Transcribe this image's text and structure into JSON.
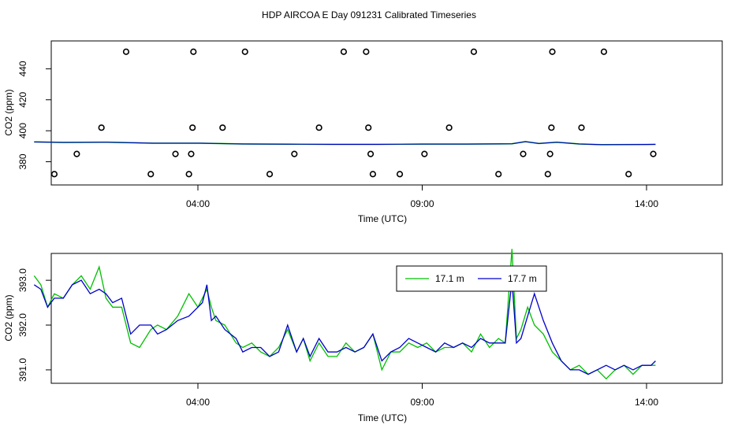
{
  "title": "HDP AIRCOA E  Day 091231  Calibrated Timeseries",
  "colors": {
    "series_17_1": "#00c000",
    "series_17_7": "#0000cc",
    "axis": "#000000"
  },
  "chart_data": [
    {
      "type": "scatter",
      "xlabel": "Time (UTC)",
      "ylabel": "CO2 (ppm)",
      "xticks": [
        "04:00",
        "09:00",
        "14:00"
      ],
      "xtick_hours": [
        4,
        9,
        14
      ],
      "yticks": [
        380,
        400,
        420,
        440
      ],
      "xlim": [
        0.3,
        14.7
      ],
      "ylim": [
        365,
        458
      ],
      "markers": [
        {
          "t": 0.8,
          "v": 372
        },
        {
          "t": 1.3,
          "v": 385
        },
        {
          "t": 1.85,
          "v": 402
        },
        {
          "t": 2.4,
          "v": 451
        },
        {
          "t": 2.95,
          "v": 372
        },
        {
          "t": 3.5,
          "v": 385
        },
        {
          "t": 3.8,
          "v": 372
        },
        {
          "t": 3.85,
          "v": 385
        },
        {
          "t": 3.88,
          "v": 402
        },
        {
          "t": 3.9,
          "v": 451
        },
        {
          "t": 4.55,
          "v": 402
        },
        {
          "t": 5.05,
          "v": 451
        },
        {
          "t": 5.6,
          "v": 372
        },
        {
          "t": 6.15,
          "v": 385
        },
        {
          "t": 6.7,
          "v": 402
        },
        {
          "t": 7.25,
          "v": 451
        },
        {
          "t": 7.75,
          "v": 451
        },
        {
          "t": 7.8,
          "v": 402
        },
        {
          "t": 7.85,
          "v": 385
        },
        {
          "t": 7.9,
          "v": 372
        },
        {
          "t": 8.5,
          "v": 372
        },
        {
          "t": 9.05,
          "v": 385
        },
        {
          "t": 9.6,
          "v": 402
        },
        {
          "t": 10.15,
          "v": 451
        },
        {
          "t": 10.7,
          "v": 372
        },
        {
          "t": 11.25,
          "v": 385
        },
        {
          "t": 11.8,
          "v": 372
        },
        {
          "t": 11.85,
          "v": 385
        },
        {
          "t": 11.88,
          "v": 402
        },
        {
          "t": 11.9,
          "v": 451
        },
        {
          "t": 12.55,
          "v": 402
        },
        {
          "t": 13.05,
          "v": 451
        },
        {
          "t": 13.6,
          "v": 372
        },
        {
          "t": 14.15,
          "v": 385
        }
      ],
      "series": [
        {
          "t": [
            0.35,
            1.0,
            2.0,
            3.0,
            4.0,
            5.0,
            6.0,
            7.0,
            8.0,
            9.0,
            10.0,
            11.0,
            11.3,
            11.6,
            12.0,
            12.5,
            13.0,
            14.0,
            14.2
          ],
          "v": [
            392.8,
            392.5,
            392.6,
            392.0,
            392.0,
            391.5,
            391.3,
            391.2,
            391.2,
            391.4,
            391.4,
            391.6,
            393.0,
            391.8,
            392.6,
            391.5,
            391.0,
            391.1,
            391.2
          ]
        }
      ]
    },
    {
      "type": "line",
      "xlabel": "Time (UTC)",
      "ylabel": "CO2 (ppm)",
      "xticks": [
        "04:00",
        "09:00",
        "14:00"
      ],
      "xtick_hours": [
        4,
        9,
        14
      ],
      "yticks": [
        "391.0",
        "392.0",
        "393.0"
      ],
      "ytick_values": [
        391.0,
        392.0,
        393.0
      ],
      "xlim": [
        0.3,
        14.7
      ],
      "ylim": [
        390.7,
        393.6
      ],
      "legend_position": "top-right",
      "series": [
        {
          "name": "17.1 m",
          "t": [
            0.35,
            0.5,
            0.65,
            0.8,
            1.0,
            1.2,
            1.4,
            1.6,
            1.8,
            1.95,
            2.1,
            2.3,
            2.5,
            2.7,
            2.95,
            3.1,
            3.3,
            3.55,
            3.8,
            4.0,
            4.1,
            4.2,
            4.3,
            4.4,
            4.6,
            4.85,
            5.0,
            5.2,
            5.4,
            5.6,
            5.8,
            6.0,
            6.2,
            6.35,
            6.5,
            6.7,
            6.9,
            7.1,
            7.3,
            7.5,
            7.7,
            7.9,
            8.1,
            8.3,
            8.5,
            8.7,
            8.9,
            9.1,
            9.3,
            9.5,
            9.7,
            9.9,
            10.1,
            10.3,
            10.5,
            10.7,
            10.85,
            11.0,
            11.1,
            11.2,
            11.35,
            11.5,
            11.7,
            11.9,
            12.1,
            12.3,
            12.5,
            12.7,
            12.9,
            13.1,
            13.3,
            13.5,
            13.7,
            13.9,
            14.1,
            14.2
          ],
          "v": [
            393.1,
            392.9,
            392.4,
            392.7,
            392.6,
            392.9,
            393.1,
            392.8,
            393.3,
            392.6,
            392.4,
            392.4,
            391.6,
            391.5,
            391.9,
            392.0,
            391.9,
            392.2,
            392.7,
            392.4,
            392.6,
            392.8,
            392.4,
            392.1,
            392.0,
            391.6,
            391.5,
            391.6,
            391.4,
            391.3,
            391.5,
            391.9,
            391.4,
            391.7,
            391.2,
            391.6,
            391.3,
            391.3,
            391.6,
            391.4,
            391.5,
            391.8,
            391.0,
            391.4,
            391.4,
            391.6,
            391.5,
            391.6,
            391.4,
            391.5,
            391.5,
            391.6,
            391.4,
            391.8,
            391.5,
            391.7,
            391.6,
            393.7,
            391.7,
            391.9,
            392.4,
            392.0,
            391.8,
            391.4,
            391.2,
            391.0,
            391.1,
            390.9,
            391.0,
            390.8,
            391.0,
            391.1,
            390.9,
            391.1,
            391.1,
            391.1
          ]
        },
        {
          "name": "17.7 m",
          "t": [
            0.35,
            0.5,
            0.65,
            0.8,
            1.0,
            1.2,
            1.4,
            1.6,
            1.8,
            1.95,
            2.1,
            2.3,
            2.5,
            2.7,
            2.95,
            3.1,
            3.3,
            3.55,
            3.8,
            4.0,
            4.1,
            4.2,
            4.3,
            4.4,
            4.6,
            4.85,
            5.0,
            5.2,
            5.4,
            5.6,
            5.8,
            6.0,
            6.2,
            6.35,
            6.5,
            6.7,
            6.9,
            7.1,
            7.3,
            7.5,
            7.7,
            7.9,
            8.1,
            8.3,
            8.5,
            8.7,
            8.9,
            9.1,
            9.3,
            9.5,
            9.7,
            9.9,
            10.1,
            10.3,
            10.5,
            10.7,
            10.85,
            11.0,
            11.1,
            11.2,
            11.35,
            11.5,
            11.7,
            11.9,
            12.1,
            12.3,
            12.5,
            12.7,
            12.9,
            13.1,
            13.3,
            13.5,
            13.7,
            13.9,
            14.1,
            14.2
          ],
          "v": [
            392.9,
            392.8,
            392.4,
            392.6,
            392.6,
            392.9,
            393.0,
            392.7,
            392.8,
            392.7,
            392.5,
            392.6,
            391.8,
            392.0,
            392.0,
            391.8,
            391.9,
            392.1,
            392.2,
            392.4,
            392.5,
            392.9,
            392.1,
            392.2,
            391.9,
            391.7,
            391.4,
            391.5,
            391.5,
            391.3,
            391.4,
            392.0,
            391.4,
            391.7,
            391.3,
            391.7,
            391.4,
            391.4,
            391.5,
            391.4,
            391.5,
            391.8,
            391.2,
            391.4,
            391.5,
            391.7,
            391.6,
            391.5,
            391.4,
            391.6,
            391.5,
            391.6,
            391.5,
            391.7,
            391.6,
            391.6,
            391.6,
            393.0,
            391.6,
            391.7,
            392.2,
            392.7,
            392.1,
            391.6,
            391.2,
            391.0,
            391.0,
            390.9,
            391.0,
            391.1,
            391.0,
            391.1,
            391.0,
            391.1,
            391.1,
            391.2
          ]
        }
      ]
    }
  ]
}
